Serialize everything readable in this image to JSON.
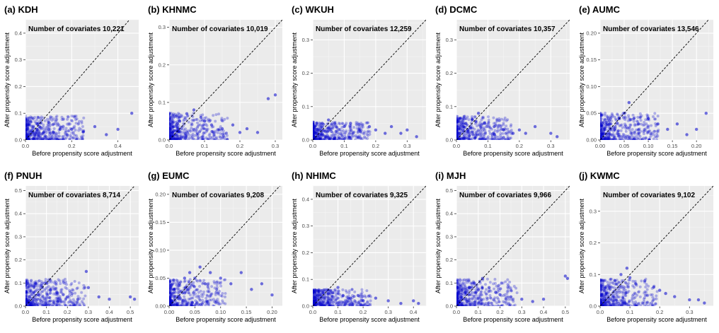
{
  "chart_data": [
    {
      "type": "scatter",
      "panel_label": "(a) KDH",
      "annotation": "Number of covariates 10,221",
      "xlabel": "Before propensity score adjustment",
      "ylabel": "After propensity score adjustment",
      "xlim": [
        0,
        0.49
      ],
      "ylim": [
        0,
        0.45
      ],
      "xticks": [
        0.0,
        0.2,
        0.4
      ],
      "yticks": [
        0.0,
        0.1,
        0.2,
        0.3,
        0.4
      ],
      "grid": true,
      "reference_line": "y = x",
      "points": {
        "x": [
          0.01,
          0.02,
          0.03,
          0.04,
          0.05,
          0.06,
          0.08,
          0.1,
          0.12,
          0.15,
          0.18,
          0.2,
          0.25,
          0.3,
          0.35,
          0.4,
          0.46
        ],
        "y": [
          0.01,
          0.02,
          0.03,
          0.02,
          0.04,
          0.05,
          0.03,
          0.04,
          0.03,
          0.04,
          0.02,
          0.04,
          0.03,
          0.05,
          0.02,
          0.04,
          0.1
        ]
      },
      "color": "#0000cc"
    },
    {
      "type": "scatter",
      "panel_label": "(b) KHNMC",
      "annotation": "Number of covariates 10,019",
      "xlabel": "Before propensity score adjustment",
      "ylabel": "After propensity score adjustment",
      "xlim": [
        0,
        0.32
      ],
      "ylim": [
        0,
        0.32
      ],
      "xticks": [
        0.0,
        0.1,
        0.2,
        0.3
      ],
      "yticks": [
        0.0,
        0.1,
        0.2,
        0.3
      ],
      "grid": true,
      "reference_line": "y = x",
      "points": {
        "x": [
          0.01,
          0.02,
          0.03,
          0.05,
          0.07,
          0.09,
          0.1,
          0.12,
          0.15,
          0.18,
          0.2,
          0.22,
          0.25,
          0.28,
          0.3
        ],
        "y": [
          0.02,
          0.04,
          0.05,
          0.07,
          0.08,
          0.06,
          0.05,
          0.04,
          0.03,
          0.04,
          0.02,
          0.03,
          0.02,
          0.11,
          0.12
        ]
      },
      "color": "#0000cc"
    },
    {
      "type": "scatter",
      "panel_label": "(c) WKUH",
      "annotation": "Number of covariates 12,259",
      "xlabel": "Before propensity score adjustment",
      "ylabel": "After propensity score adjustment",
      "xlim": [
        0,
        0.36
      ],
      "ylim": [
        0,
        0.36
      ],
      "xticks": [
        0.0,
        0.1,
        0.2,
        0.3
      ],
      "yticks": [
        0.0,
        0.1,
        0.2,
        0.3
      ],
      "grid": true,
      "reference_line": "y = x",
      "points": {
        "x": [
          0.01,
          0.02,
          0.03,
          0.05,
          0.07,
          0.1,
          0.12,
          0.15,
          0.18,
          0.2,
          0.23,
          0.25,
          0.28,
          0.3,
          0.33
        ],
        "y": [
          0.02,
          0.03,
          0.05,
          0.06,
          0.05,
          0.04,
          0.05,
          0.03,
          0.04,
          0.03,
          0.02,
          0.04,
          0.02,
          0.03,
          0.01
        ]
      },
      "color": "#0000cc"
    },
    {
      "type": "scatter",
      "panel_label": "(d) DCMC",
      "annotation": "Number of covariates 10,357",
      "xlabel": "Before propensity score adjustment",
      "ylabel": "After propensity score adjustment",
      "xlim": [
        0,
        0.36
      ],
      "ylim": [
        0,
        0.36
      ],
      "xticks": [
        0.0,
        0.1,
        0.2,
        0.3
      ],
      "yticks": [
        0.0,
        0.1,
        0.2,
        0.3
      ],
      "grid": true,
      "reference_line": "y = x",
      "points": {
        "x": [
          0.01,
          0.02,
          0.03,
          0.05,
          0.07,
          0.09,
          0.12,
          0.15,
          0.18,
          0.2,
          0.22,
          0.25,
          0.3,
          0.32
        ],
        "y": [
          0.02,
          0.04,
          0.05,
          0.06,
          0.08,
          0.05,
          0.04,
          0.03,
          0.02,
          0.03,
          0.02,
          0.04,
          0.02,
          0.01
        ]
      },
      "color": "#0000cc"
    },
    {
      "type": "scatter",
      "panel_label": "(e) AUMC",
      "annotation": "Number of covariates 13,546",
      "xlabel": "Before propensity score adjustment",
      "ylabel": "After propensity score adjustment",
      "xlim": [
        0,
        0.235
      ],
      "ylim": [
        0,
        0.225
      ],
      "xticks": [
        0.0,
        0.05,
        0.1,
        0.15,
        0.2
      ],
      "yticks": [
        0.0,
        0.05,
        0.1,
        0.15,
        0.2
      ],
      "grid": true,
      "reference_line": "y = x",
      "points": {
        "x": [
          0.005,
          0.01,
          0.02,
          0.03,
          0.04,
          0.05,
          0.06,
          0.07,
          0.08,
          0.1,
          0.12,
          0.14,
          0.16,
          0.18,
          0.2,
          0.22
        ],
        "y": [
          0.01,
          0.02,
          0.03,
          0.02,
          0.04,
          0.05,
          0.07,
          0.04,
          0.03,
          0.04,
          0.03,
          0.02,
          0.03,
          0.01,
          0.02,
          0.05
        ]
      },
      "color": "#0000cc"
    },
    {
      "type": "scatter",
      "panel_label": "(f) PNUH",
      "annotation": "Number of covariates 8,714",
      "xlabel": "Before propensity score adjustment",
      "ylabel": "After propensity score adjustment",
      "xlim": [
        0,
        0.54
      ],
      "ylim": [
        0,
        0.52
      ],
      "xticks": [
        0.0,
        0.1,
        0.2,
        0.3,
        0.4,
        0.5
      ],
      "yticks": [
        0.0,
        0.1,
        0.2,
        0.3,
        0.4,
        0.5
      ],
      "grid": true,
      "reference_line": "y = x",
      "points": {
        "x": [
          0.01,
          0.02,
          0.04,
          0.06,
          0.08,
          0.1,
          0.12,
          0.15,
          0.18,
          0.2,
          0.25,
          0.29,
          0.3,
          0.35,
          0.4,
          0.5,
          0.52
        ],
        "y": [
          0.02,
          0.04,
          0.06,
          0.05,
          0.08,
          0.1,
          0.07,
          0.06,
          0.05,
          0.04,
          0.03,
          0.15,
          0.08,
          0.04,
          0.03,
          0.04,
          0.03
        ]
      },
      "color": "#0000cc"
    },
    {
      "type": "scatter",
      "panel_label": "(g) EUMC",
      "annotation": "Number of covariates 9,208",
      "xlabel": "Before propensity score adjustment",
      "ylabel": "After propensity score adjustment",
      "xlim": [
        0,
        0.22
      ],
      "ylim": [
        0,
        0.215
      ],
      "xticks": [
        0.0,
        0.05,
        0.1,
        0.15,
        0.2
      ],
      "yticks": [
        0.0,
        0.05,
        0.1,
        0.15,
        0.2
      ],
      "grid": true,
      "reference_line": "y = x",
      "points": {
        "x": [
          0.005,
          0.01,
          0.02,
          0.03,
          0.04,
          0.05,
          0.06,
          0.07,
          0.08,
          0.1,
          0.12,
          0.14,
          0.16,
          0.18,
          0.2
        ],
        "y": [
          0.01,
          0.03,
          0.04,
          0.05,
          0.06,
          0.05,
          0.07,
          0.04,
          0.06,
          0.05,
          0.04,
          0.06,
          0.03,
          0.04,
          0.02
        ]
      },
      "color": "#0000cc"
    },
    {
      "type": "scatter",
      "panel_label": "(h) NHIMC",
      "annotation": "Number of covariates 9,325",
      "xlabel": "Before propensity score adjustment",
      "ylabel": "After propensity score adjustment",
      "xlim": [
        0,
        0.45
      ],
      "ylim": [
        0,
        0.45
      ],
      "xticks": [
        0.0,
        0.1,
        0.2,
        0.3,
        0.4
      ],
      "yticks": [
        0.0,
        0.1,
        0.2,
        0.3,
        0.4
      ],
      "grid": true,
      "reference_line": "y = x",
      "points": {
        "x": [
          0.01,
          0.02,
          0.04,
          0.06,
          0.08,
          0.1,
          0.12,
          0.15,
          0.18,
          0.2,
          0.25,
          0.3,
          0.35,
          0.4,
          0.42
        ],
        "y": [
          0.02,
          0.04,
          0.05,
          0.06,
          0.05,
          0.07,
          0.04,
          0.03,
          0.04,
          0.02,
          0.03,
          0.02,
          0.01,
          0.02,
          0.01
        ]
      },
      "color": "#0000cc"
    },
    {
      "type": "scatter",
      "panel_label": "(i) MJH",
      "annotation": "Number of covariates 9,966",
      "xlabel": "Before propensity score adjustment",
      "ylabel": "After propensity score adjustment",
      "xlim": [
        0,
        0.52
      ],
      "ylim": [
        0,
        0.52
      ],
      "xticks": [
        0.0,
        0.1,
        0.2,
        0.3,
        0.4,
        0.5
      ],
      "yticks": [
        0.0,
        0.1,
        0.2,
        0.3,
        0.4,
        0.5
      ],
      "grid": true,
      "reference_line": "y = x",
      "points": {
        "x": [
          0.01,
          0.02,
          0.04,
          0.06,
          0.08,
          0.1,
          0.12,
          0.15,
          0.18,
          0.2,
          0.25,
          0.3,
          0.35,
          0.4,
          0.5,
          0.51
        ],
        "y": [
          0.02,
          0.04,
          0.06,
          0.08,
          0.1,
          0.07,
          0.12,
          0.08,
          0.06,
          0.05,
          0.04,
          0.03,
          0.02,
          0.03,
          0.13,
          0.12
        ]
      },
      "color": "#0000cc"
    },
    {
      "type": "scatter",
      "panel_label": "(j) KWMC",
      "annotation": "Number of covariates 9,102",
      "xlabel": "Before propensity score adjustment",
      "ylabel": "After propensity score adjustment",
      "xlim": [
        0,
        0.38
      ],
      "ylim": [
        0,
        0.38
      ],
      "xticks": [
        0.0,
        0.1,
        0.2,
        0.3
      ],
      "yticks": [
        0.0,
        0.1,
        0.2,
        0.3
      ],
      "grid": true,
      "reference_line": "y = x",
      "points": {
        "x": [
          0.01,
          0.02,
          0.03,
          0.05,
          0.07,
          0.09,
          0.1,
          0.12,
          0.15,
          0.18,
          0.2,
          0.22,
          0.25,
          0.3,
          0.33,
          0.35
        ],
        "y": [
          0.02,
          0.04,
          0.06,
          0.08,
          0.1,
          0.12,
          0.09,
          0.07,
          0.08,
          0.06,
          0.05,
          0.04,
          0.03,
          0.02,
          0.02,
          0.01
        ]
      },
      "color": "#0000cc"
    }
  ]
}
